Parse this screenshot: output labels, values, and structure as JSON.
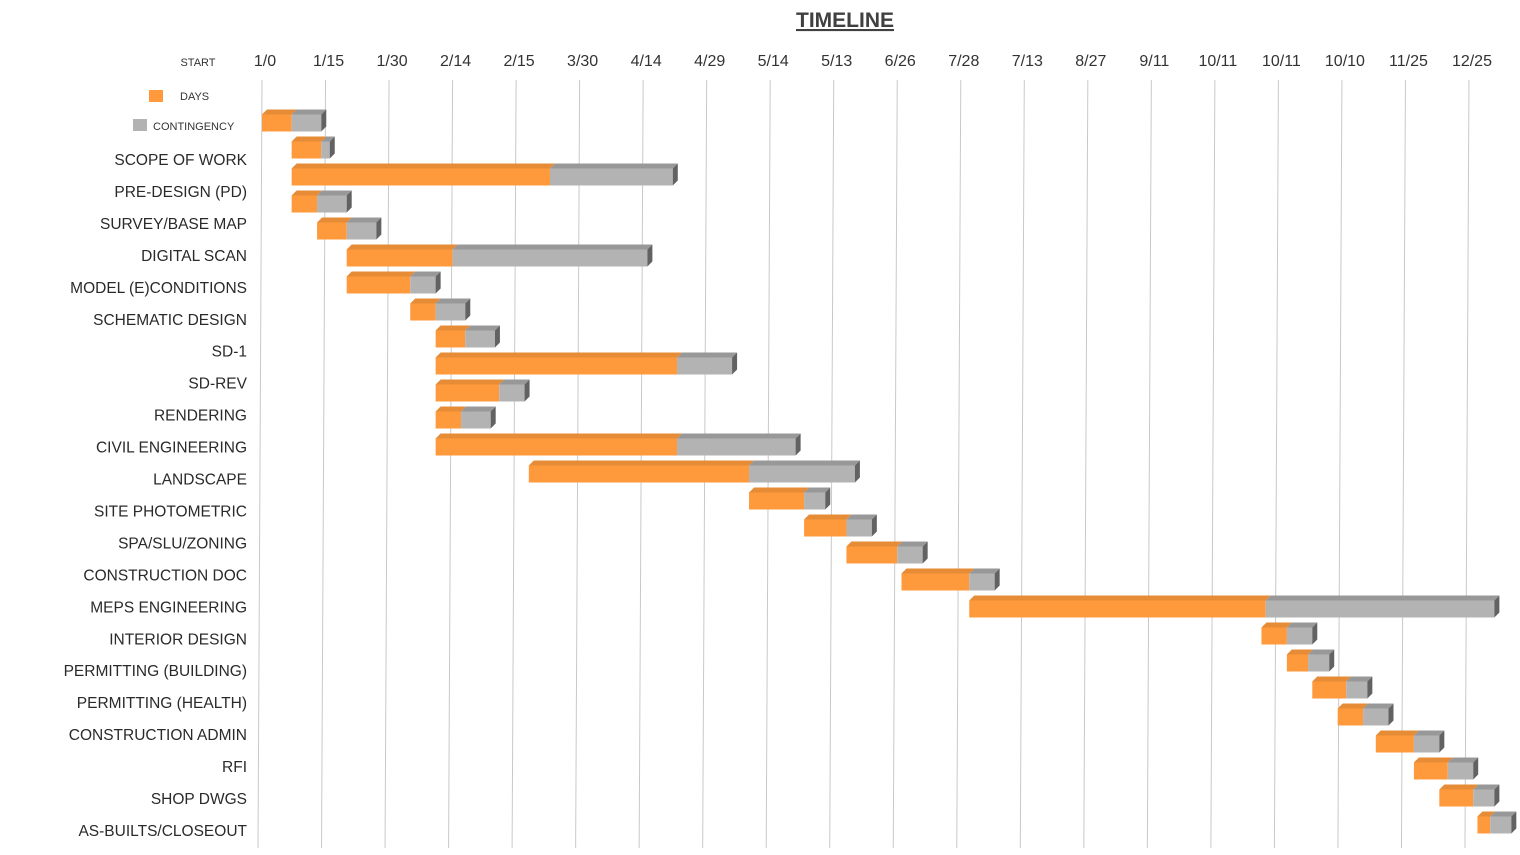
{
  "chart_data": {
    "type": "bar",
    "orientation": "horizontal",
    "stacked": true,
    "title": "TIMELINE",
    "axis_start_label": "START",
    "tick_labels": [
      "1/0",
      "1/15",
      "1/30",
      "2/14",
      "2/15",
      "3/30",
      "4/14",
      "4/29",
      "5/14",
      "5/13",
      "6/26",
      "7/28",
      "7/13",
      "8/27",
      "9/11",
      "10/11",
      "10/11",
      "10/10",
      "11/25",
      "12/25"
    ],
    "tick_day_offsets": [
      0,
      15,
      30,
      45,
      60,
      75,
      90,
      105,
      120,
      135,
      150,
      165,
      180,
      195,
      210,
      225,
      240,
      255,
      270,
      285
    ],
    "xlim": [
      0,
      290
    ],
    "grid": true,
    "legend": {
      "position": "top-left",
      "entries": [
        {
          "name": "DAYS",
          "color": "#FF9A3C"
        },
        {
          "name": "CONTINGENCY",
          "color": "#B3B3B3"
        }
      ]
    },
    "colors": {
      "days": "#FF9A3C",
      "contingency": "#B3B3B3"
    },
    "tasks": [
      {
        "label": "",
        "start": 0,
        "days": 7,
        "contingency": 7
      },
      {
        "label": "SCOPE OF WORK",
        "start": 7,
        "days": 7,
        "contingency": 2
      },
      {
        "label": "PRE-DESIGN (PD)",
        "start": 7,
        "days": 61,
        "contingency": 29
      },
      {
        "label": "SURVEY/BASE MAP",
        "start": 7,
        "days": 6,
        "contingency": 7
      },
      {
        "label": "DIGITAL SCAN",
        "start": 13,
        "days": 7,
        "contingency": 7
      },
      {
        "label": "MODEL (E)CONDITIONS",
        "start": 20,
        "days": 25,
        "contingency": 46
      },
      {
        "label": "SCHEMATIC DESIGN",
        "start": 20,
        "days": 15,
        "contingency": 6
      },
      {
        "label": "SD-1",
        "start": 35,
        "days": 6,
        "contingency": 7
      },
      {
        "label": "SD-REV",
        "start": 41,
        "days": 7,
        "contingency": 7
      },
      {
        "label": "RENDERING",
        "start": 41,
        "days": 57,
        "contingency": 13
      },
      {
        "label": "CIVIL ENGINEERING",
        "start": 41,
        "days": 15,
        "contingency": 6
      },
      {
        "label": "LANDSCAPE",
        "start": 41,
        "days": 6,
        "contingency": 7
      },
      {
        "label": "SITE PHOTOMETRIC",
        "start": 41,
        "days": 57,
        "contingency": 28
      },
      {
        "label": "SPA/SLU/ZONING",
        "start": 63,
        "days": 52,
        "contingency": 25
      },
      {
        "label": "CONSTRUCTION DOC",
        "start": 115,
        "days": 13,
        "contingency": 5
      },
      {
        "label": "MEPS ENGINEERING",
        "start": 128,
        "days": 10,
        "contingency": 6
      },
      {
        "label": "INTERIOR DESIGN",
        "start": 138,
        "days": 12,
        "contingency": 6
      },
      {
        "label": "PERMITTING (BUILDING)",
        "start": 151,
        "days": 16,
        "contingency": 6
      },
      {
        "label": "PERMITTING (HEALTH)",
        "start": 167,
        "days": 70,
        "contingency": 54
      },
      {
        "label": "CONSTRUCTION ADMIN",
        "start": 236,
        "days": 6,
        "contingency": 6
      },
      {
        "label": "RFI",
        "start": 242,
        "days": 5,
        "contingency": 5
      },
      {
        "label": "SHOP DWGS",
        "start": 248,
        "days": 8,
        "contingency": 5
      },
      {
        "label": "AS-BUILTS/CLOSEOUT",
        "start": 254,
        "days": 6,
        "contingency": 6
      },
      {
        "label": "",
        "start": 263,
        "days": 9,
        "contingency": 6
      },
      {
        "label": "",
        "start": 272,
        "days": 8,
        "contingency": 6
      },
      {
        "label": "",
        "start": 278,
        "days": 8,
        "contingency": 5
      },
      {
        "label": "",
        "start": 287,
        "days": 3,
        "contingency": 5
      }
    ]
  }
}
